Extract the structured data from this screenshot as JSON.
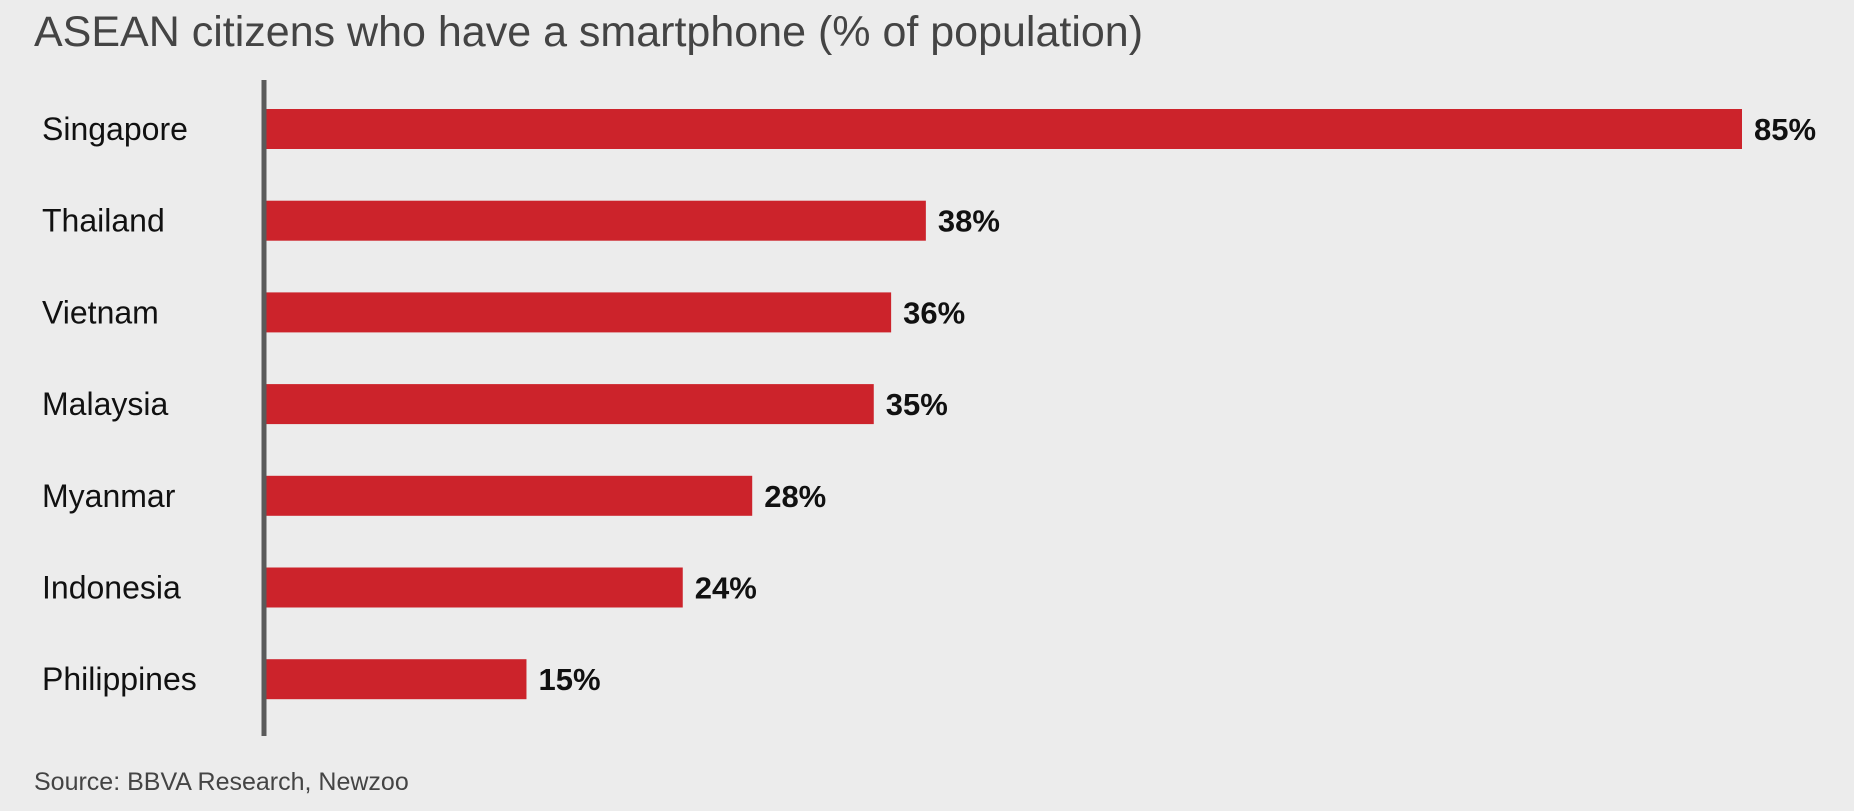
{
  "title": "ASEAN citizens who have a smartphone (% of population)",
  "source": "Source: BBVA Research, Newzoo",
  "colors": {
    "bar": "#cc232b",
    "axis": "#5a5a5a",
    "label": "#111111",
    "title": "#444444",
    "background": "#ececec"
  },
  "chart_data": {
    "type": "bar",
    "orientation": "horizontal",
    "title": "ASEAN citizens who have a smartphone (% of population)",
    "categories": [
      "Singapore",
      "Thailand",
      "Vietnam",
      "Malaysia",
      "Myanmar",
      "Indonesia",
      "Philippines"
    ],
    "values": [
      85,
      38,
      36,
      35,
      28,
      24,
      15
    ],
    "value_labels": [
      "85%",
      "38%",
      "36%",
      "35%",
      "28%",
      "24%",
      "15%"
    ],
    "xlim": [
      0,
      85
    ],
    "grid": false,
    "legend": "none"
  }
}
